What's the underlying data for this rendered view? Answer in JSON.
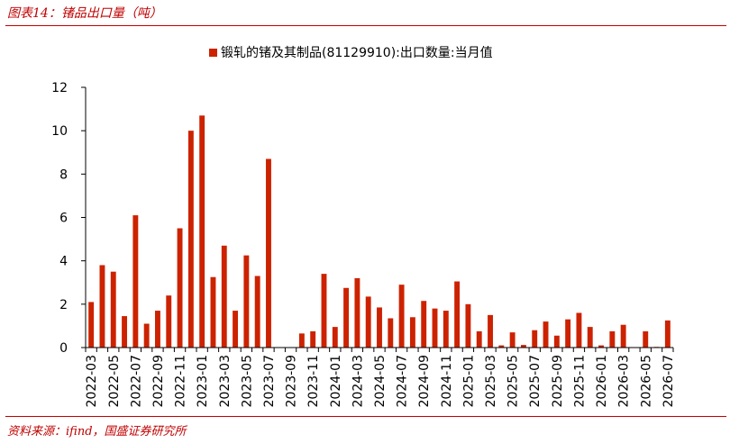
{
  "figure": {
    "title": "图表14：锗品出口量（吨）",
    "source": "资料来源：ifind，国盛证券研究所"
  },
  "chart_data": {
    "type": "bar",
    "legend": "锻轧的锗及其制品(81129910):出口数量:当月值",
    "color": "#cc2200",
    "ylim": [
      0,
      12
    ],
    "yticks": [
      0,
      2,
      4,
      6,
      8,
      10,
      12
    ],
    "grid": false,
    "legend_position": "top-center",
    "xtick_labels": [
      "2022-03",
      "2022-05",
      "2022-07",
      "2022-09",
      "2022-11",
      "2023-01",
      "2023-03",
      "2023-05",
      "2023-07",
      "2023-09",
      "2023-11",
      "2024-01",
      "2024-03",
      "2024-05",
      "2024-07",
      "2024-09",
      "2024-11",
      "2025-01",
      "2025-03",
      "2025-05",
      "2025-07",
      "2025-09",
      "2025-11",
      "2026-01",
      "2026-03",
      "2026-05",
      "2026-07"
    ],
    "categories": [
      "2022-03",
      "2022-04",
      "2022-05",
      "2022-06",
      "2022-07",
      "2022-08",
      "2022-09",
      "2022-10",
      "2022-11",
      "2022-12",
      "2023-01",
      "2023-02",
      "2023-03",
      "2023-04",
      "2023-05",
      "2023-06",
      "2023-07",
      "2023-08",
      "2023-09",
      "2023-10",
      "2023-11",
      "2023-12",
      "2024-01",
      "2024-02",
      "2024-03",
      "2024-04",
      "2024-05",
      "2024-06",
      "2024-07",
      "2024-08",
      "2024-09",
      "2024-10",
      "2024-11",
      "2024-12",
      "2025-01",
      "2025-02",
      "2025-03",
      "2025-04",
      "2025-05",
      "2025-06",
      "2025-07",
      "2025-08",
      "2025-09",
      "2025-10",
      "2025-11",
      "2025-12",
      "2026-01",
      "2026-02",
      "2026-03",
      "2026-04",
      "2026-05",
      "2026-06",
      "2026-07"
    ],
    "values": [
      2.1,
      3.8,
      3.5,
      1.45,
      6.1,
      1.1,
      1.7,
      2.4,
      5.5,
      10.0,
      10.7,
      3.25,
      4.7,
      1.7,
      4.25,
      3.3,
      8.7,
      0,
      0.02,
      0.65,
      0.75,
      3.4,
      0.95,
      2.75,
      3.2,
      2.35,
      1.85,
      1.35,
      2.9,
      1.4,
      2.15,
      1.8,
      1.7,
      3.05,
      2.0,
      0.75,
      1.5,
      0.1,
      0.7,
      0.12,
      0.8,
      1.2,
      0.55,
      1.3,
      1.6,
      0.95,
      0.1,
      0.75,
      1.05,
      0,
      0.75,
      0.03,
      1.25
    ]
  }
}
